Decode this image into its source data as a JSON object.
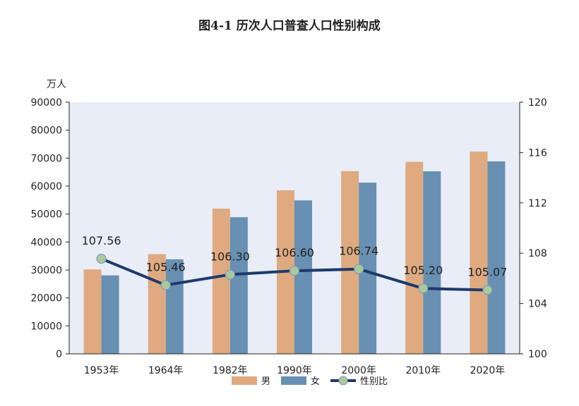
{
  "chart_data": {
    "type": "bar",
    "title": "图4-1    历次人口普查人口性别构成",
    "y_unit": "万人",
    "categories": [
      "1953年",
      "1964年",
      "1982年",
      "1990年",
      "2000年",
      "2010年",
      "2020年"
    ],
    "ylim": [
      0,
      90000
    ],
    "y_ticks": [
      "90000",
      "80000",
      "70000",
      "60000",
      "50000",
      "40000",
      "30000",
      "20000",
      "10000",
      "0"
    ],
    "y2lim": [
      100,
      120
    ],
    "y2_ticks": [
      "120",
      "116",
      "112",
      "108",
      "104",
      "100"
    ],
    "series": [
      {
        "name": "男",
        "type": "bar",
        "axis": "left",
        "color": "#dfaa80",
        "values": [
          30190,
          35652,
          51944,
          58495,
          65355,
          68685,
          72334
        ]
      },
      {
        "name": "女",
        "type": "bar",
        "axis": "left",
        "color": "#6790b3",
        "values": [
          28069,
          33806,
          48874,
          54878,
          61228,
          65287,
          68844
        ]
      },
      {
        "name": "性别比",
        "type": "line",
        "axis": "right",
        "color": "#1e3a6b",
        "marker_color": "#a9c99c",
        "values": [
          107.56,
          105.46,
          106.3,
          106.6,
          106.74,
          105.2,
          105.07
        ],
        "labels": [
          "107.56",
          "105.46",
          "106.30",
          "106.60",
          "106.74",
          "105.20",
          "105.07"
        ]
      }
    ],
    "plot_background": "#e8edf7",
    "grid": false,
    "legend_position": "bottom"
  }
}
